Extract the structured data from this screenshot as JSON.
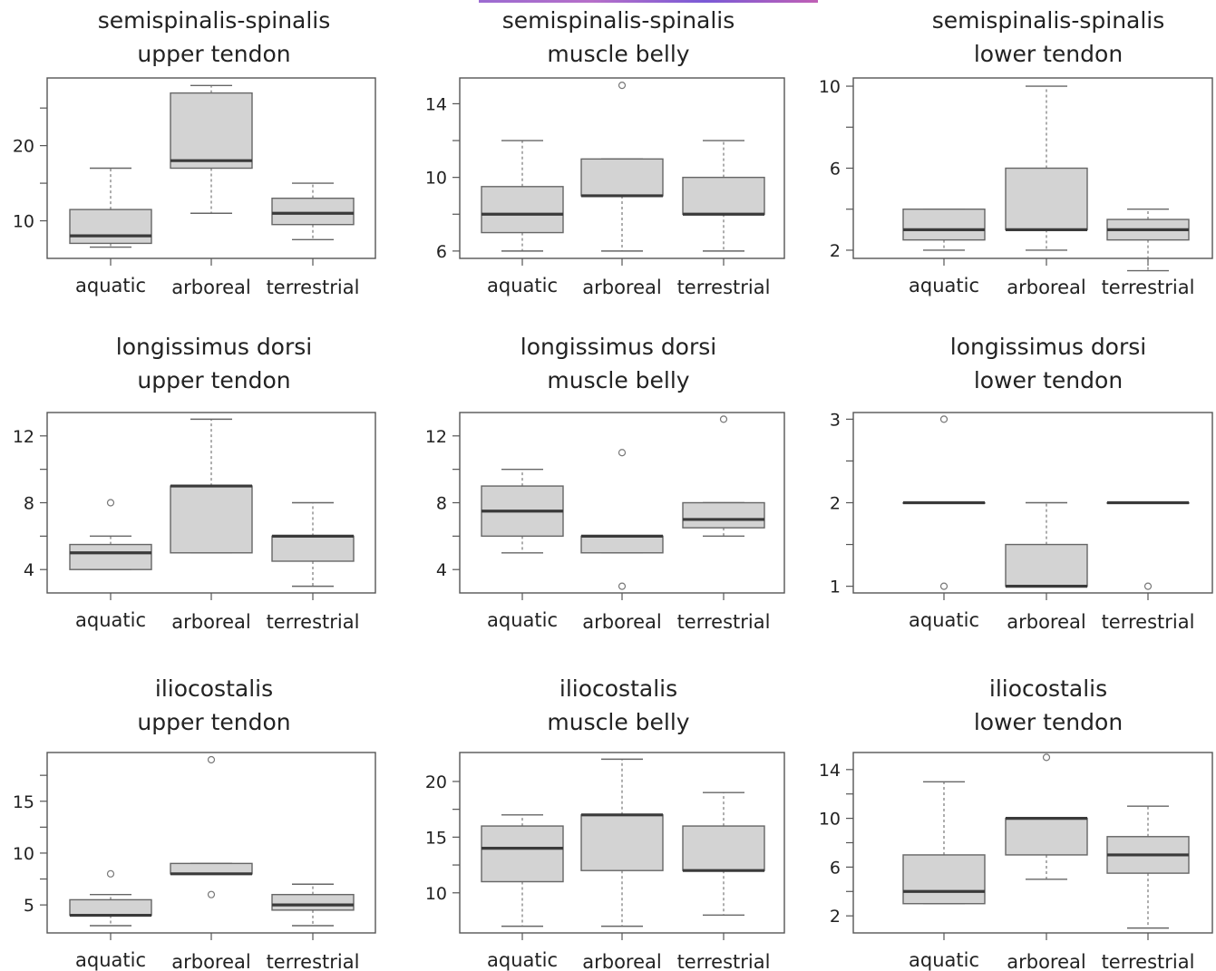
{
  "chart_data": [
    {
      "type": "box",
      "title": [
        "semispinalis-spinalis",
        "upper tendon"
      ],
      "categories": [
        "aquatic",
        "arboreal",
        "terrestrial"
      ],
      "ylim": [
        5,
        29
      ],
      "yticks": [
        10,
        20
      ],
      "yminor": [
        15,
        25
      ],
      "boxes": [
        {
          "min": 6.5,
          "q1": 7,
          "median": 8,
          "q3": 11.5,
          "max": 17,
          "outliers": []
        },
        {
          "min": 11,
          "q1": 17,
          "median": 18,
          "q3": 27,
          "max": 28,
          "outliers": []
        },
        {
          "min": 7.5,
          "q1": 9.5,
          "median": 11,
          "q3": 13,
          "max": 15,
          "outliers": []
        }
      ]
    },
    {
      "type": "box",
      "title": [
        "semispinalis-spinalis",
        "muscle belly"
      ],
      "categories": [
        "aquatic",
        "arboreal",
        "terrestrial"
      ],
      "ylim": [
        5.6,
        15.4
      ],
      "yticks": [
        6,
        10,
        14
      ],
      "yminor": [
        8,
        12
      ],
      "boxes": [
        {
          "min": 6,
          "q1": 7,
          "median": 8,
          "q3": 9.5,
          "max": 12,
          "outliers": []
        },
        {
          "min": 6,
          "q1": 9,
          "median": 9,
          "q3": 11,
          "max": 11,
          "outliers": [
            15
          ]
        },
        {
          "min": 6,
          "q1": 8,
          "median": 8,
          "q3": 10,
          "max": 12,
          "outliers": []
        }
      ]
    },
    {
      "type": "box",
      "title": [
        "semispinalis-spinalis",
        "lower tendon"
      ],
      "categories": [
        "aquatic",
        "arboreal",
        "terrestrial"
      ],
      "ylim": [
        1.6,
        10.4
      ],
      "yticks": [
        2,
        6,
        10
      ],
      "yminor": [
        4,
        8
      ],
      "boxes": [
        {
          "min": 2,
          "q1": 2.5,
          "median": 3,
          "q3": 4,
          "max": 4,
          "outliers": []
        },
        {
          "min": 2,
          "q1": 3,
          "median": 3,
          "q3": 6,
          "max": 10,
          "outliers": []
        },
        {
          "min": 1,
          "q1": 2.5,
          "median": 3,
          "q3": 3.5,
          "max": 4,
          "outliers": []
        }
      ]
    },
    {
      "type": "box",
      "title": [
        "longissimus dorsi",
        "upper tendon"
      ],
      "categories": [
        "aquatic",
        "arboreal",
        "terrestrial"
      ],
      "ylim": [
        2.6,
        13.4
      ],
      "yticks": [
        4,
        8,
        12
      ],
      "yminor": [
        6,
        10
      ],
      "boxes": [
        {
          "min": 4,
          "q1": 4,
          "median": 5,
          "q3": 5.5,
          "max": 6,
          "outliers": [
            8
          ]
        },
        {
          "min": 5,
          "q1": 5,
          "median": 9,
          "q3": 9,
          "max": 13,
          "outliers": []
        },
        {
          "min": 3,
          "q1": 4.5,
          "median": 6,
          "q3": 6,
          "max": 8,
          "outliers": []
        }
      ]
    },
    {
      "type": "box",
      "title": [
        "longissimus dorsi",
        "muscle belly"
      ],
      "categories": [
        "aquatic",
        "arboreal",
        "terrestrial"
      ],
      "ylim": [
        2.6,
        13.4
      ],
      "yticks": [
        4,
        8,
        12
      ],
      "yminor": [
        6,
        10
      ],
      "boxes": [
        {
          "min": 5,
          "q1": 6,
          "median": 7.5,
          "q3": 9,
          "max": 10,
          "outliers": []
        },
        {
          "min": 5,
          "q1": 5,
          "median": 6,
          "q3": 6,
          "max": 6,
          "outliers": [
            11,
            3
          ]
        },
        {
          "min": 6,
          "q1": 6.5,
          "median": 7,
          "q3": 8,
          "max": 8,
          "outliers": [
            13
          ]
        }
      ]
    },
    {
      "type": "box",
      "title": [
        "longissimus dorsi",
        "lower tendon"
      ],
      "categories": [
        "aquatic",
        "arboreal",
        "terrestrial"
      ],
      "ylim": [
        0.92,
        3.08
      ],
      "yticks": [
        1,
        2,
        3
      ],
      "yminor": [
        1.5,
        2.5
      ],
      "boxes": [
        {
          "min": 2,
          "q1": 2,
          "median": 2,
          "q3": 2,
          "max": 2,
          "outliers": [
            3,
            1
          ]
        },
        {
          "min": 1,
          "q1": 1,
          "median": 1,
          "q3": 1.5,
          "max": 2,
          "outliers": []
        },
        {
          "min": 2,
          "q1": 2,
          "median": 2,
          "q3": 2,
          "max": 2,
          "outliers": [
            1
          ]
        }
      ]
    },
    {
      "type": "box",
      "title": [
        "iliocostalis",
        "upper tendon"
      ],
      "categories": [
        "aquatic",
        "arboreal",
        "terrestrial"
      ],
      "ylim": [
        2.3,
        19.7
      ],
      "yticks": [
        5,
        10,
        15
      ],
      "yminor": [
        7.5,
        12.5,
        17.5
      ],
      "boxes": [
        {
          "min": 3,
          "q1": 4,
          "median": 4,
          "q3": 5.5,
          "max": 6,
          "outliers": [
            8
          ]
        },
        {
          "min": 8,
          "q1": 8,
          "median": 8,
          "q3": 9,
          "max": 9,
          "outliers": [
            19,
            6
          ]
        },
        {
          "min": 3,
          "q1": 4.5,
          "median": 5,
          "q3": 6,
          "max": 7,
          "outliers": []
        }
      ]
    },
    {
      "type": "box",
      "title": [
        "iliocostalis",
        "muscle belly"
      ],
      "categories": [
        "aquatic",
        "arboreal",
        "terrestrial"
      ],
      "ylim": [
        6.4,
        22.6
      ],
      "yticks": [
        10,
        15,
        20
      ],
      "yminor": [
        12.5,
        17.5
      ],
      "boxes": [
        {
          "min": 7,
          "q1": 11,
          "median": 14,
          "q3": 16,
          "max": 17,
          "outliers": []
        },
        {
          "min": 7,
          "q1": 12,
          "median": 17,
          "q3": 17,
          "max": 22,
          "outliers": []
        },
        {
          "min": 8,
          "q1": 12,
          "median": 12,
          "q3": 16,
          "max": 19,
          "outliers": []
        }
      ]
    },
    {
      "type": "box",
      "title": [
        "iliocostalis",
        "lower tendon"
      ],
      "categories": [
        "aquatic",
        "arboreal",
        "terrestrial"
      ],
      "ylim": [
        0.6,
        15.4
      ],
      "yticks": [
        2,
        6,
        10,
        14
      ],
      "yminor": [
        4,
        8,
        12
      ],
      "boxes": [
        {
          "min": 3,
          "q1": 3,
          "median": 4,
          "q3": 7,
          "max": 13,
          "outliers": []
        },
        {
          "min": 5,
          "q1": 7,
          "median": 10,
          "q3": 10,
          "max": 10,
          "outliers": [
            15
          ]
        },
        {
          "min": 1,
          "q1": 5.5,
          "median": 7,
          "q3": 8.5,
          "max": 11,
          "outliers": []
        }
      ]
    }
  ]
}
